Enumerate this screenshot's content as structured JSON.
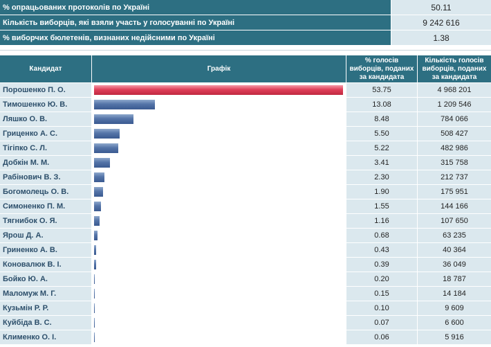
{
  "summary": [
    {
      "label": "% опрацьованих протоколів по Україні",
      "value": "50.11"
    },
    {
      "label": "Кількість виборців, які взяли участь у голосуванні по Україні",
      "value": "9 242 616"
    },
    {
      "label": "% виборчих бюлетенів, визнаних недійсними по Україні",
      "value": "1.38"
    }
  ],
  "headers": {
    "candidate": "Кандидат",
    "graph": "Графік",
    "pct": "% голосів виборців, поданих за кандидата",
    "votes": "Кількість голосів виборців, поданих за кандидата"
  },
  "colors": {
    "lead_bar": "#e0405a",
    "bar": "#4a6a9e",
    "header": "#2d6f82"
  },
  "chart_data": {
    "type": "bar",
    "title": "Графік",
    "categories": [
      "Порошенко П. О.",
      "Тимошенко Ю. В.",
      "Ляшко О. В.",
      "Гриценко А. С.",
      "Тігіпко С. Л.",
      "Добкін М. М.",
      "Рабінович В. З.",
      "Богомолець О. В.",
      "Симоненко П. М.",
      "Тягнибок О. Я.",
      "Ярош Д. А.",
      "Гриненко А. В.",
      "Коновалюк В. І.",
      "Бойко Ю. А.",
      "Маломуж М. Г.",
      "Кузьмін Р. Р.",
      "Куйбіда В. С.",
      "Клименко О. І."
    ],
    "values": [
      53.75,
      13.08,
      8.48,
      5.5,
      5.22,
      3.41,
      2.3,
      1.9,
      1.55,
      1.16,
      0.68,
      0.43,
      0.39,
      0.2,
      0.15,
      0.1,
      0.07,
      0.06
    ],
    "ylim": [
      0,
      53.75
    ]
  },
  "rows": [
    {
      "name": "Порошенко П. О.",
      "pct": "53.75",
      "votes": "4 968 201"
    },
    {
      "name": "Тимошенко Ю. В.",
      "pct": "13.08",
      "votes": "1 209 546"
    },
    {
      "name": "Ляшко О. В.",
      "pct": "8.48",
      "votes": "784 066"
    },
    {
      "name": "Гриценко А. С.",
      "pct": "5.50",
      "votes": "508 427"
    },
    {
      "name": "Тігіпко С. Л.",
      "pct": "5.22",
      "votes": "482 986"
    },
    {
      "name": "Добкін М. М.",
      "pct": "3.41",
      "votes": "315 758"
    },
    {
      "name": "Рабінович В. З.",
      "pct": "2.30",
      "votes": "212 737"
    },
    {
      "name": "Богомолець О. В.",
      "pct": "1.90",
      "votes": "175 951"
    },
    {
      "name": "Симоненко П. М.",
      "pct": "1.55",
      "votes": "144 166"
    },
    {
      "name": "Тягнибок О. Я.",
      "pct": "1.16",
      "votes": "107 650"
    },
    {
      "name": "Ярош Д. А.",
      "pct": "0.68",
      "votes": "63 235"
    },
    {
      "name": "Гриненко А. В.",
      "pct": "0.43",
      "votes": "40 364"
    },
    {
      "name": "Коновалюк В. І.",
      "pct": "0.39",
      "votes": "36 049"
    },
    {
      "name": "Бойко Ю. А.",
      "pct": "0.20",
      "votes": "18 787"
    },
    {
      "name": "Маломуж М. Г.",
      "pct": "0.15",
      "votes": "14 184"
    },
    {
      "name": "Кузьмін Р. Р.",
      "pct": "0.10",
      "votes": "9 609"
    },
    {
      "name": "Куйбіда В. С.",
      "pct": "0.07",
      "votes": "6 600"
    },
    {
      "name": "Клименко О. І.",
      "pct": "0.06",
      "votes": "5 916"
    }
  ]
}
